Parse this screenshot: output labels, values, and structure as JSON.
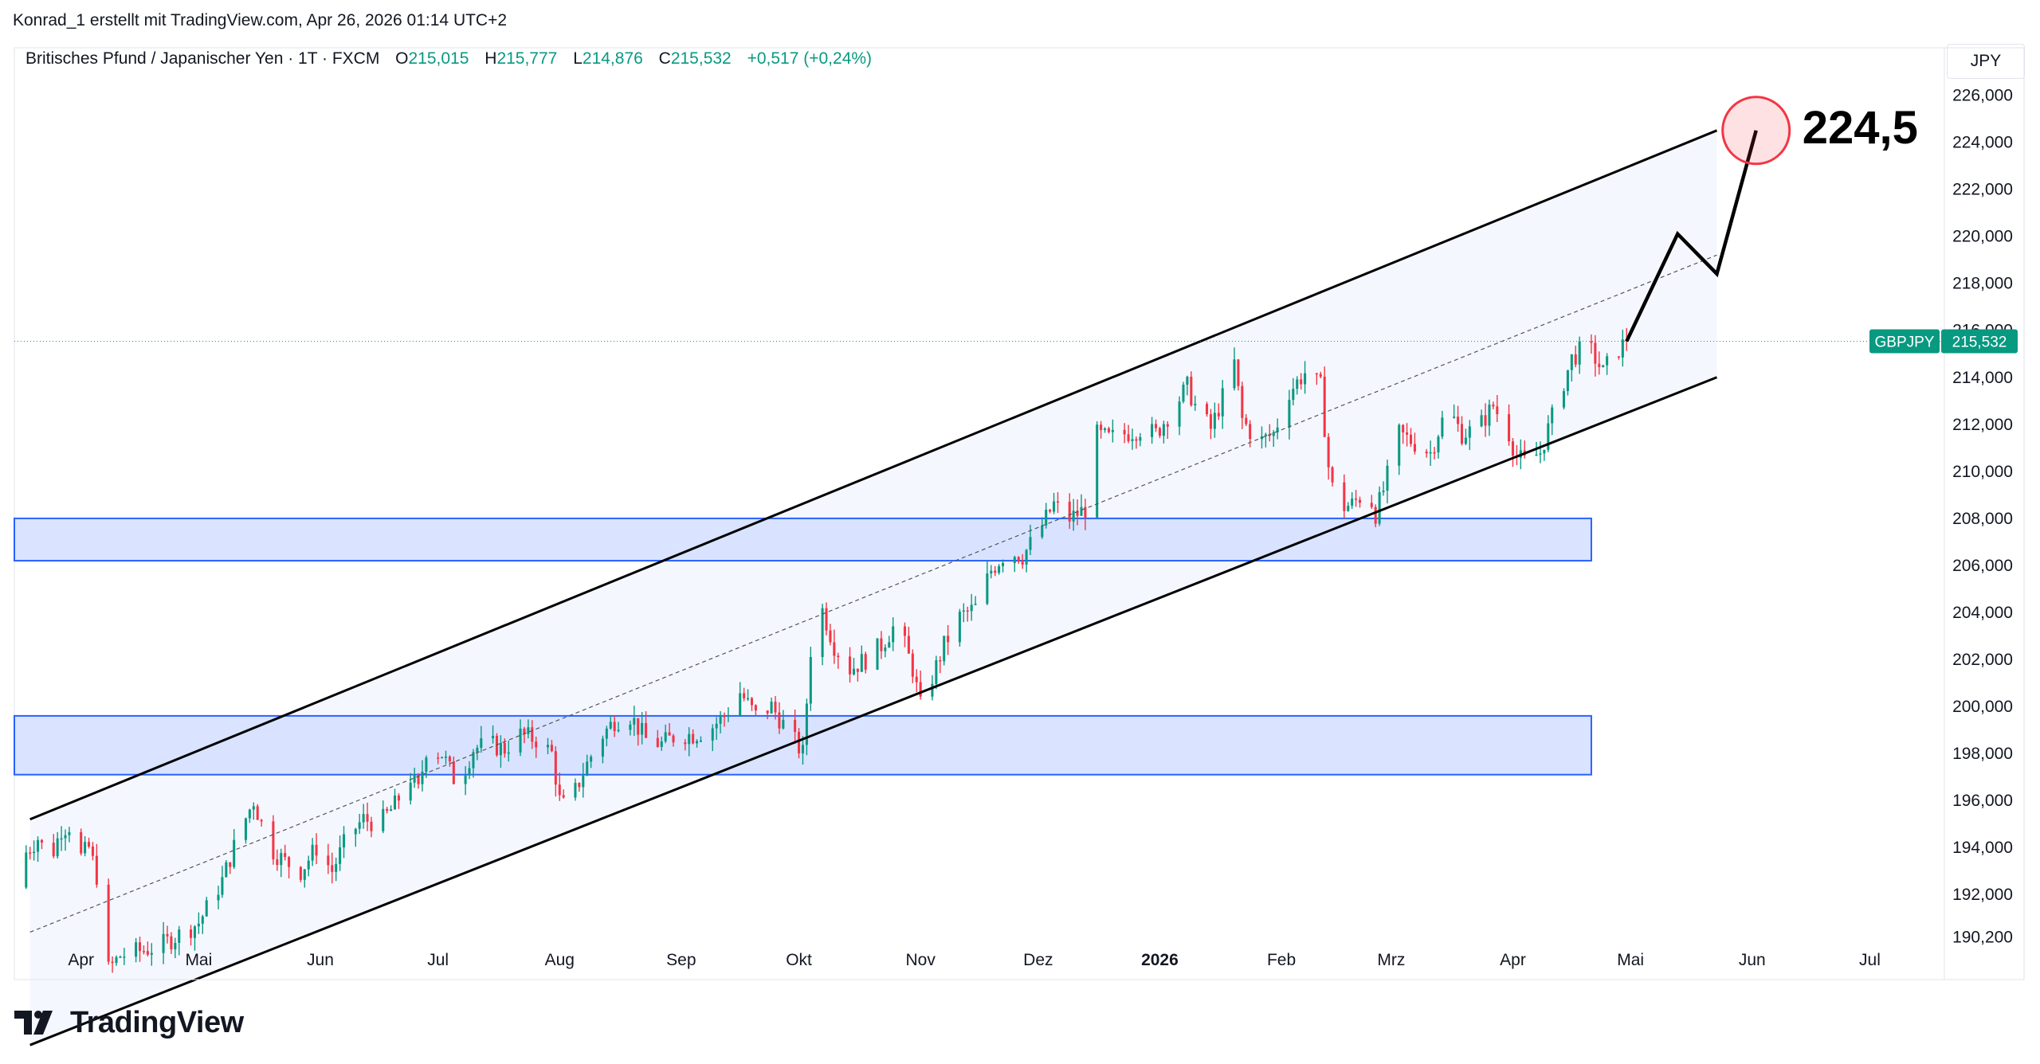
{
  "header": {
    "author_line": "Konrad_1 erstellt mit TradingView.com, Apr 26, 2026 01:14 UTC+2"
  },
  "legend": {
    "symbol": "Britisches Pfund / Japanischer Yen · 1T · FXCM",
    "open_label": "O",
    "open": "215,015",
    "high_label": "H",
    "high": "215,777",
    "low_label": "L",
    "low": "214,876",
    "close_label": "C",
    "close": "215,532",
    "change": "+0,517 (+0,24%)"
  },
  "currency_button": "JPY",
  "price_tag": {
    "symbol": "GBPJPY",
    "price": "215,532"
  },
  "annotation": {
    "target_label": "224,5",
    "target_value": 224.5
  },
  "branding": {
    "name": "TradingView"
  },
  "colors": {
    "up": "#089981",
    "down": "#f23645",
    "zone_fill": "#d6e0ff",
    "zone_border": "#2962ff",
    "channel_fill": "#f5f7ff",
    "target_circle": "#f23645"
  },
  "chart_data": {
    "type": "candlestick",
    "symbol": "GBPJPY",
    "timeframe": "1T",
    "y_axis_ticks": [
      "226,000",
      "224,000",
      "222,000",
      "220,000",
      "218,000",
      "216,000",
      "214,000",
      "212,000",
      "210,000",
      "208,000",
      "206,000",
      "204,000",
      "202,000",
      "200,000",
      "198,000",
      "196,000",
      "194,000",
      "192,000",
      "190,200"
    ],
    "y_tick_values": [
      226,
      224,
      222,
      220,
      218,
      216,
      214,
      212,
      210,
      208,
      206,
      204,
      202,
      200,
      198,
      196,
      194,
      192,
      190.2
    ],
    "x_axis_ticks": [
      "Apr",
      "Mai",
      "Jun",
      "Jul",
      "Aug",
      "Sep",
      "Okt",
      "Nov",
      "Dez",
      "2026",
      "Feb",
      "Mrz",
      "Apr",
      "Mai",
      "Jun",
      "Jul"
    ],
    "x_tick_days": [
      0,
      30,
      61,
      91,
      122,
      153,
      183,
      214,
      244,
      275,
      306,
      334,
      365,
      395,
      426,
      456
    ],
    "x_tick_bold": [
      false,
      false,
      false,
      false,
      false,
      false,
      false,
      false,
      false,
      true,
      false,
      false,
      false,
      false,
      false,
      false
    ],
    "ylim": [
      189.4,
      227.0
    ],
    "xlim_days": [
      -17,
      475
    ],
    "last_close": 215.532,
    "close_path_daykeys": [
      [
        -16,
        192.3
      ],
      [
        -14,
        193.8
      ],
      [
        -11,
        194.4
      ],
      [
        -8,
        193.4
      ],
      [
        -5,
        194.8
      ],
      [
        -2,
        195.0
      ],
      [
        0,
        193.6
      ],
      [
        2,
        194.0
      ],
      [
        4,
        192.8
      ],
      [
        5,
        190.2
      ],
      [
        6,
        188.6
      ],
      [
        10,
        189.4
      ],
      [
        20,
        189.8
      ],
      [
        30,
        190.8
      ],
      [
        36,
        192.6
      ],
      [
        40,
        194.5
      ],
      [
        44,
        196.0
      ],
      [
        48,
        194.0
      ],
      [
        52,
        193.4
      ],
      [
        56,
        193.0
      ],
      [
        60,
        194.0
      ],
      [
        64,
        193.0
      ],
      [
        68,
        194.5
      ],
      [
        72,
        195.2
      ],
      [
        76,
        195.0
      ],
      [
        80,
        195.8
      ],
      [
        84,
        197.0
      ],
      [
        86,
        196.4
      ],
      [
        88,
        198.2
      ],
      [
        92,
        198.0
      ],
      [
        96,
        196.6
      ],
      [
        100,
        198.2
      ],
      [
        104,
        198.4
      ],
      [
        108,
        198.2
      ],
      [
        112,
        198.8
      ],
      [
        116,
        198.6
      ],
      [
        120,
        198.0
      ],
      [
        122,
        196.0
      ],
      [
        124,
        195.6
      ],
      [
        128,
        197.2
      ],
      [
        132,
        198.6
      ],
      [
        136,
        199.4
      ],
      [
        140,
        199.6
      ],
      [
        144,
        198.6
      ],
      [
        148,
        198.4
      ],
      [
        152,
        198.8
      ],
      [
        156,
        198.8
      ],
      [
        160,
        199.0
      ],
      [
        164,
        199.6
      ],
      [
        168,
        200.6
      ],
      [
        172,
        199.6
      ],
      [
        176,
        200.0
      ],
      [
        180,
        199.0
      ],
      [
        184,
        198.0
      ],
      [
        186,
        202.4
      ],
      [
        188,
        204.6
      ],
      [
        192,
        202.6
      ],
      [
        196,
        201.6
      ],
      [
        200,
        202.0
      ],
      [
        204,
        202.6
      ],
      [
        208,
        203.6
      ],
      [
        212,
        201.6
      ],
      [
        214,
        200.0
      ],
      [
        216,
        200.8
      ],
      [
        220,
        202.6
      ],
      [
        224,
        203.8
      ],
      [
        228,
        204.2
      ],
      [
        232,
        205.8
      ],
      [
        236,
        206.6
      ],
      [
        240,
        206.4
      ],
      [
        244,
        207.4
      ],
      [
        248,
        208.6
      ],
      [
        252,
        208.0
      ],
      [
        256,
        208.4
      ],
      [
        258,
        211.6
      ],
      [
        262,
        211.4
      ],
      [
        266,
        211.6
      ],
      [
        270,
        211.8
      ],
      [
        274,
        211.6
      ],
      [
        278,
        212.6
      ],
      [
        282,
        213.6
      ],
      [
        284,
        212.8
      ],
      [
        288,
        211.8
      ],
      [
        292,
        213.6
      ],
      [
        294,
        214.6
      ],
      [
        296,
        212.2
      ],
      [
        300,
        211.2
      ],
      [
        304,
        211.6
      ],
      [
        308,
        213.4
      ],
      [
        312,
        214.2
      ],
      [
        316,
        213.6
      ],
      [
        318,
        210.2
      ],
      [
        320,
        208.4
      ],
      [
        324,
        208.6
      ],
      [
        328,
        209.2
      ],
      [
        330,
        208.2
      ],
      [
        332,
        209.2
      ],
      [
        336,
        211.6
      ],
      [
        340,
        211.2
      ],
      [
        344,
        210.8
      ],
      [
        348,
        212.6
      ],
      [
        350,
        212.2
      ],
      [
        352,
        211.6
      ],
      [
        356,
        211.8
      ],
      [
        360,
        212.8
      ],
      [
        364,
        211.6
      ],
      [
        366,
        210.6
      ],
      [
        368,
        210.4
      ],
      [
        372,
        210.8
      ],
      [
        376,
        212.8
      ],
      [
        380,
        214.8
      ],
      [
        384,
        215.4
      ],
      [
        386,
        214.8
      ],
      [
        388,
        214.2
      ],
      [
        390,
        214.8
      ],
      [
        392,
        215.2
      ],
      [
        394,
        215.532
      ]
    ],
    "channel": {
      "upper": {
        "start": [
          -13,
          195.2
        ],
        "end": [
          417,
          224.5
        ]
      },
      "lower": {
        "start": [
          -13,
          185.6
        ],
        "end": [
          417,
          214.0
        ]
      },
      "midline": {
        "start": [
          -13,
          190.4
        ],
        "end": [
          417,
          219.2
        ]
      },
      "fill_to_day": 417
    },
    "zones": [
      {
        "y_low": 206.2,
        "y_high": 208.0,
        "x_end_day": 385
      },
      {
        "y_low": 197.1,
        "y_high": 199.6,
        "x_end_day": 385
      }
    ],
    "projection_path": [
      [
        394,
        215.532
      ],
      [
        407,
        220.1
      ],
      [
        417,
        218.4
      ],
      [
        427,
        224.5
      ]
    ],
    "projection_target": {
      "day": 427,
      "value": 224.5
    },
    "current_price_line": 215.532,
    "grid": false
  }
}
